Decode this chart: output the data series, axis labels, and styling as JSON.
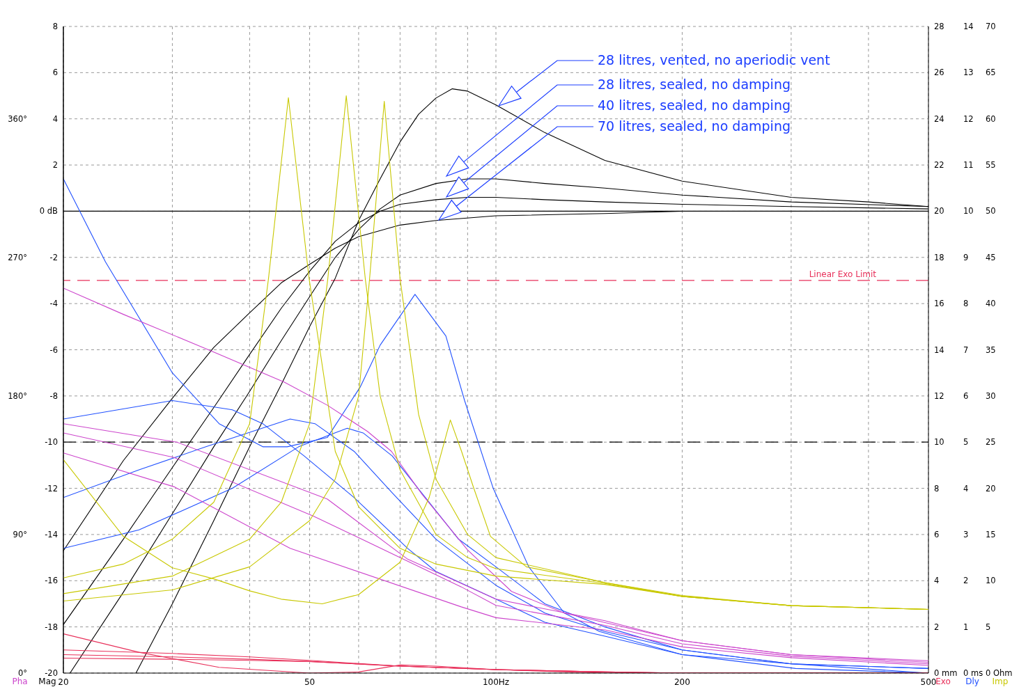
{
  "chart_data": [
    {
      "type": "line",
      "log": "x",
      "grid": true,
      "xlim": [
        20,
        500
      ],
      "xticks": [
        20,
        {
          "value": 30,
          "label": null
        },
        {
          "value": 40,
          "label": null
        },
        50,
        {
          "value": 60,
          "label": null
        },
        {
          "value": 70,
          "label": null
        },
        {
          "value": 80,
          "label": null
        },
        {
          "value": 90,
          "label": null
        },
        {
          "value": 100,
          "label": "100Hz"
        },
        200,
        {
          "value": 300,
          "label": null
        },
        {
          "value": 400,
          "label": null
        },
        500
      ],
      "ylabel": "Mag",
      "ylim": [
        -20,
        8
      ],
      "yticks": [
        -20,
        -18,
        -16,
        -14,
        -12,
        -10,
        -8,
        -6,
        -4,
        -2,
        {
          "value": 0,
          "label": "0 dB"
        },
        2,
        4,
        6,
        8
      ],
      "y2label": "Exo",
      "y2lim": [
        0,
        28
      ],
      "y2ticks": [
        {
          "value": 0,
          "label": "0 mm"
        },
        2,
        4,
        6,
        8,
        10,
        12,
        14,
        16,
        18,
        20,
        22,
        24,
        26,
        28
      ],
      "y3label": "Dly",
      "y3lim": [
        0,
        14
      ],
      "y3ticks": [
        {
          "value": 0,
          "label": "0 ms"
        },
        1,
        2,
        3,
        4,
        5,
        6,
        7,
        8,
        9,
        10,
        11,
        12,
        13,
        14
      ],
      "ref_lines": [
        {
          "axis": "y",
          "value": 0,
          "color": "#000000",
          "line_style": "solid"
        },
        {
          "axis": "y",
          "value": -10,
          "color": "#000000",
          "line_style": "dashed"
        },
        {
          "axis": "y2",
          "value": 17,
          "label": "Linear Exo Limit",
          "color": "#e8305a",
          "line_style": "dashed"
        }
      ],
      "annotations": [
        "28 litres, vented, no aperiodic vent",
        "28 litres, sealed, no damping",
        "40 litres, sealed, no damping",
        "70 litres, sealed, no damping"
      ],
      "series": [
        {
          "color": "#000000",
          "x": [
            20,
            25,
            30,
            35,
            40,
            45,
            50,
            55,
            60,
            70,
            80,
            100,
            150,
            200,
            500
          ],
          "values": [
            -14.7,
            -10.8,
            -8.1,
            -5.9,
            -4.4,
            -3.1,
            -2.3,
            -1.6,
            -1.1,
            -0.6,
            -0.4,
            -0.2,
            -0.1,
            0,
            0
          ]
        },
        {
          "color": "#000000",
          "x": [
            20,
            25,
            30,
            35,
            40,
            45,
            50,
            55,
            60,
            65,
            70,
            80,
            90,
            100,
            120,
            150,
            200,
            300,
            500
          ],
          "values": [
            -17.9,
            -14.2,
            -11.1,
            -8.5,
            -6.2,
            -4.2,
            -2.6,
            -1.3,
            -0.5,
            0,
            0.3,
            0.5,
            0.6,
            0.6,
            0.5,
            0.4,
            0.3,
            0.2,
            0.1
          ]
        },
        {
          "color": "#000000",
          "x": [
            20.5,
            25,
            30,
            35,
            40,
            45,
            50,
            55,
            60,
            65,
            70,
            80,
            90,
            100,
            120,
            150,
            200,
            300,
            500
          ],
          "values": [
            -20,
            -16.5,
            -13.1,
            -10.2,
            -7.8,
            -5.6,
            -3.7,
            -2,
            -0.8,
            0.1,
            0.7,
            1.2,
            1.4,
            1.4,
            1.2,
            1,
            0.7,
            0.4,
            0.2
          ]
        },
        {
          "color": "#000000",
          "x": [
            26.2,
            30,
            35,
            40,
            45,
            50,
            55,
            60,
            65,
            70,
            75,
            80,
            85,
            90,
            100,
            120,
            150,
            200,
            300,
            400,
            500
          ],
          "values": [
            -20,
            -17,
            -13.4,
            -10.2,
            -7.5,
            -5,
            -2.9,
            -0.4,
            1.4,
            3,
            4.2,
            4.9,
            5.3,
            5.2,
            4.6,
            3.4,
            2.2,
            1.3,
            0.6,
            0.4,
            0.2
          ]
        },
        {
          "color": "#2050ff",
          "axis": "y3",
          "x": [
            20,
            23.4,
            30,
            35.7,
            42,
            46,
            53.4,
            60.4,
            65,
            74,
            83,
            89,
            99,
            113,
            129,
            147,
            200,
            305,
            500
          ],
          "values": [
            10.7,
            8.9,
            6.5,
            5.4,
            4.9,
            4.9,
            5.1,
            6.2,
            7.1,
            8.2,
            7.3,
            5.9,
            4,
            2.3,
            1.3,
            0.9,
            0.4,
            0.1,
            0
          ]
        },
        {
          "color": "#2050ff",
          "axis": "y3",
          "x": [
            20,
            30,
            37.5,
            42,
            49,
            59,
            72,
            80,
            100,
            120,
            150,
            200,
            300,
            500
          ],
          "values": [
            5.5,
            5.9,
            5.7,
            5.4,
            4.7,
            3.8,
            2.7,
            2.2,
            1.6,
            1.1,
            0.8,
            0.4,
            0.2,
            0
          ]
        },
        {
          "color": "#2050ff",
          "axis": "y3",
          "x": [
            20,
            26.5,
            34,
            46.5,
            51,
            59,
            68,
            80,
            100,
            120,
            150,
            200,
            300,
            500
          ],
          "values": [
            3.8,
            4.4,
            4.9,
            5.5,
            5.4,
            4.8,
            3.9,
            2.9,
            1.9,
            1.3,
            0.9,
            0.5,
            0.2,
            0.1
          ]
        },
        {
          "color": "#2050ff",
          "axis": "y3",
          "x": [
            20,
            26.5,
            37.5,
            48,
            57.5,
            61,
            68,
            87,
            100,
            120,
            150,
            200,
            300,
            500
          ],
          "values": [
            2.7,
            3.1,
            4,
            4.9,
            5.3,
            5.2,
            4.7,
            2.9,
            2.3,
            1.5,
            1,
            0.5,
            0.2,
            0.1
          ]
        },
        {
          "color": "#e8305a",
          "axis": "y2",
          "x": [
            20,
            26.5,
            35.7,
            50,
            60,
            70,
            80,
            100,
            150,
            500
          ],
          "values": [
            1.7,
            0.9,
            0.25,
            0,
            0.05,
            0.35,
            0.3,
            0.15,
            0,
            0
          ]
        },
        {
          "color": "#e8305a",
          "axis": "y2",
          "x": [
            20,
            30,
            40,
            50,
            70,
            100,
            150,
            200,
            500
          ],
          "values": [
            1,
            0.85,
            0.7,
            0.55,
            0.3,
            0.15,
            0.05,
            0,
            0
          ]
        },
        {
          "color": "#e8305a",
          "axis": "y2",
          "x": [
            20,
            30,
            40,
            50,
            70,
            100,
            150,
            200,
            500
          ],
          "values": [
            0.8,
            0.7,
            0.6,
            0.5,
            0.3,
            0.15,
            0.05,
            0,
            0
          ]
        },
        {
          "color": "#e8305a",
          "axis": "y2",
          "x": [
            20,
            30,
            40,
            50,
            70,
            100,
            150,
            200,
            500
          ],
          "values": [
            0.65,
            0.6,
            0.55,
            0.5,
            0.3,
            0.15,
            0.05,
            0,
            0
          ]
        }
      ]
    },
    {
      "type": "line",
      "log": "x",
      "tick_labels": "y",
      "xlim": [
        20,
        500
      ],
      "ylabel": "Pha",
      "ylim": [
        0,
        420
      ],
      "yticks": [
        {
          "value": 0,
          "label": "0°"
        },
        {
          "value": 90,
          "label": "90°"
        },
        {
          "value": 180,
          "label": "180°"
        },
        {
          "value": 270,
          "label": "270°"
        },
        {
          "value": 360,
          "label": "360°"
        }
      ],
      "y2label": "Imp",
      "y2lim": [
        0,
        70
      ],
      "y2ticks": [
        {
          "value": 0,
          "label": "0 Ohm"
        },
        5,
        10,
        15,
        20,
        25,
        30,
        35,
        40,
        45,
        50,
        55,
        60,
        65,
        70
      ],
      "series": [
        {
          "color": "#cc44cc",
          "x": [
            20,
            25,
            34.3,
            45.5,
            53.4,
            62,
            67.8,
            76,
            90,
            106,
            129,
            200,
            300,
            500
          ],
          "values": [
            250,
            233,
            210,
            189,
            174,
            157,
            144,
            116,
            80,
            53,
            39,
            21,
            12,
            8
          ]
        },
        {
          "color": "#cc44cc",
          "x": [
            20,
            30.5,
            53.4,
            72,
            100,
            150,
            200,
            300,
            500
          ],
          "values": [
            162,
            150,
            113,
            74,
            48,
            34,
            21,
            12,
            7
          ]
        },
        {
          "color": "#cc44cc",
          "x": [
            20,
            30.2,
            50.7,
            87.9,
            100,
            150,
            200,
            300,
            500
          ],
          "values": [
            156,
            140,
            102,
            56,
            44,
            31,
            19,
            11,
            6
          ]
        },
        {
          "color": "#cc44cc",
          "x": [
            20,
            30.2,
            46.5,
            87.9,
            100,
            150,
            200,
            300,
            500
          ],
          "values": [
            143,
            121,
            81,
            43,
            36,
            28,
            17,
            10,
            5
          ]
        },
        {
          "color": "#c8c800",
          "axis": "y2",
          "x": [
            20,
            25,
            30,
            35,
            40,
            42.9,
            46.2,
            49.9,
            55,
            60,
            70,
            80,
            100,
            150,
            200,
            300,
            500
          ],
          "values": [
            10.3,
            11.8,
            14.5,
            18.5,
            27,
            42.7,
            62.3,
            42.7,
            24,
            18,
            13.5,
            11.8,
            10.5,
            9.6,
            8.3,
            7.3,
            6.9
          ]
        },
        {
          "color": "#c8c800",
          "axis": "y2",
          "x": [
            20,
            30,
            40,
            45,
            50,
            53.5,
            57.3,
            61.5,
            65,
            70,
            80,
            90,
            100,
            150,
            200,
            300,
            500
          ],
          "values": [
            8.6,
            10.5,
            14.5,
            18.5,
            27,
            42.7,
            62.5,
            42.7,
            30,
            22,
            15,
            12.5,
            11.3,
            9.7,
            8.3,
            7.3,
            6.9
          ]
        },
        {
          "color": "#c8c800",
          "axis": "y2",
          "x": [
            20,
            30,
            40,
            50,
            55,
            60,
            62.5,
            66,
            70,
            75,
            80,
            90,
            100,
            150,
            200,
            300,
            500
          ],
          "values": [
            7.8,
            9,
            11.5,
            16.5,
            21,
            30,
            42.7,
            61.9,
            42.7,
            28,
            21,
            15,
            12.5,
            9.8,
            8.3,
            7.3,
            6.9
          ]
        },
        {
          "color": "#c8c800",
          "axis": "y2",
          "x": [
            20,
            25,
            30,
            35,
            40,
            45,
            52.4,
            60,
            70,
            78,
            84.4,
            88,
            92,
            98,
            112,
            150,
            200,
            300,
            500
          ],
          "values": [
            23.1,
            14.8,
            11.4,
            10.2,
            8.9,
            8,
            7.5,
            8.5,
            12,
            19,
            27.4,
            24,
            20.1,
            14.8,
            11.5,
            9.8,
            8.4,
            7.3,
            6.9
          ]
        }
      ]
    }
  ]
}
